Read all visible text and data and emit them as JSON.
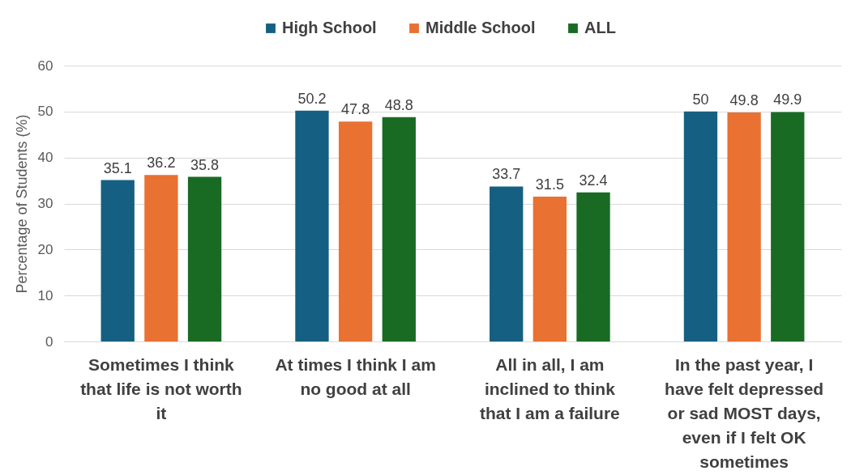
{
  "chart_data": {
    "type": "bar",
    "ylabel": "Percentage of Students (%)",
    "categories": [
      "Sometimes I think that life is not worth it",
      "At times I think I am no good at all",
      "All in all, I am inclined to think that I am a failure",
      "In the past year, I have felt depressed or sad MOST days, even if I felt OK sometimes"
    ],
    "series": [
      {
        "name": "High School",
        "color": "#156082",
        "values": [
          35.1,
          50.2,
          33.7,
          50
        ]
      },
      {
        "name": "Middle School",
        "color": "#e97132",
        "values": [
          36.2,
          47.8,
          31.5,
          49.8
        ]
      },
      {
        "name": "ALL",
        "color": "#196b24",
        "values": [
          35.8,
          48.8,
          32.4,
          49.9
        ]
      }
    ],
    "ylim": [
      0,
      60
    ],
    "yticks": [
      0,
      10,
      20,
      30,
      40,
      50,
      60
    ],
    "grid": "y",
    "data_labels": true,
    "legend": "top"
  }
}
